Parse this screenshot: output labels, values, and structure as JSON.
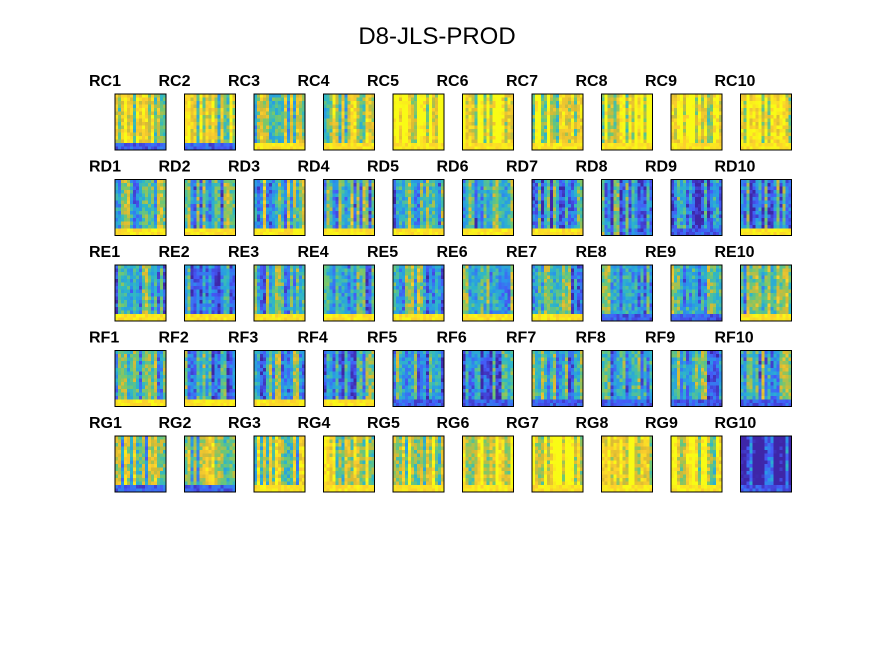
{
  "chart_data": {
    "type": "heatmap",
    "title": "D8-JLS-PROD",
    "colormap": "parula",
    "colors": {
      "low": "#3e26a8",
      "mid": "#2ea8df",
      "high": "#f9fb15",
      "axes_border": "#000000",
      "background": "#ffffff"
    },
    "rows": [
      {
        "label": "RC",
        "panels": [
          {
            "label": "RC1",
            "level": 0.7,
            "bottom": "dark"
          },
          {
            "label": "RC2",
            "level": 0.72,
            "bottom": "dark"
          },
          {
            "label": "RC3",
            "level": 0.55,
            "bottom": "bright"
          },
          {
            "label": "RC4",
            "level": 0.68,
            "bottom": "bright"
          },
          {
            "label": "RC5",
            "level": 0.85,
            "bottom": "bright"
          },
          {
            "label": "RC6",
            "level": 0.88,
            "bottom": "bright"
          },
          {
            "label": "RC7",
            "level": 0.8,
            "bottom": "bright"
          },
          {
            "label": "RC8",
            "level": 0.85,
            "bottom": "bright"
          },
          {
            "label": "RC9",
            "level": 0.86,
            "bottom": "bright"
          },
          {
            "label": "RC10",
            "level": 0.85,
            "bottom": "bright"
          }
        ]
      },
      {
        "label": "RD",
        "panels": [
          {
            "label": "RD1",
            "level": 0.45,
            "bottom": "bright"
          },
          {
            "label": "RD2",
            "level": 0.4,
            "bottom": "bright"
          },
          {
            "label": "RD3",
            "level": 0.48,
            "bottom": "bright"
          },
          {
            "label": "RD4",
            "level": 0.45,
            "bottom": "bright"
          },
          {
            "label": "RD5",
            "level": 0.4,
            "bottom": "bright"
          },
          {
            "label": "RD6",
            "level": 0.36,
            "bottom": "bright"
          },
          {
            "label": "RD7",
            "level": 0.34,
            "bottom": "bright"
          },
          {
            "label": "RD8",
            "level": 0.3,
            "bottom": "mid"
          },
          {
            "label": "RD9",
            "level": 0.22,
            "bottom": "dark"
          },
          {
            "label": "RD10",
            "level": 0.32,
            "bottom": "bright"
          }
        ]
      },
      {
        "label": "RE",
        "panels": [
          {
            "label": "RE1",
            "level": 0.38,
            "bottom": "bright"
          },
          {
            "label": "RE2",
            "level": 0.34,
            "bottom": "bright"
          },
          {
            "label": "RE3",
            "level": 0.36,
            "bottom": "bright"
          },
          {
            "label": "RE4",
            "level": 0.36,
            "bottom": "bright"
          },
          {
            "label": "RE5",
            "level": 0.42,
            "bottom": "bright"
          },
          {
            "label": "RE6",
            "level": 0.38,
            "bottom": "bright"
          },
          {
            "label": "RE7",
            "level": 0.4,
            "bottom": "bright"
          },
          {
            "label": "RE8",
            "level": 0.44,
            "bottom": "dark"
          },
          {
            "label": "RE9",
            "level": 0.46,
            "bottom": "dark"
          },
          {
            "label": "RE10",
            "level": 0.48,
            "bottom": "bright"
          }
        ]
      },
      {
        "label": "RF",
        "panels": [
          {
            "label": "RF1",
            "level": 0.42,
            "bottom": "bright"
          },
          {
            "label": "RF2",
            "level": 0.38,
            "bottom": "bright"
          },
          {
            "label": "RF3",
            "level": 0.38,
            "bottom": "bright"
          },
          {
            "label": "RF4",
            "level": 0.38,
            "bottom": "bright"
          },
          {
            "label": "RF5",
            "level": 0.36,
            "bottom": "dark"
          },
          {
            "label": "RF6",
            "level": 0.36,
            "bottom": "dark"
          },
          {
            "label": "RF7",
            "level": 0.36,
            "bottom": "dark"
          },
          {
            "label": "RF8",
            "level": 0.38,
            "bottom": "dark"
          },
          {
            "label": "RF9",
            "level": 0.38,
            "bottom": "dark"
          },
          {
            "label": "RF10",
            "level": 0.42,
            "bottom": "dark"
          }
        ]
      },
      {
        "label": "RG",
        "panels": [
          {
            "label": "RG1",
            "level": 0.55,
            "bottom": "dark"
          },
          {
            "label": "RG2",
            "level": 0.62,
            "bottom": "dark"
          },
          {
            "label": "RG3",
            "level": 0.62,
            "bottom": "bright"
          },
          {
            "label": "RG4",
            "level": 0.72,
            "bottom": "bright"
          },
          {
            "label": "RG5",
            "level": 0.7,
            "bottom": "bright"
          },
          {
            "label": "RG6",
            "level": 0.82,
            "bottom": "bright"
          },
          {
            "label": "RG7",
            "level": 0.88,
            "bottom": "bright"
          },
          {
            "label": "RG8",
            "level": 0.86,
            "bottom": "bright"
          },
          {
            "label": "RG9",
            "level": 0.8,
            "bottom": "bright"
          },
          {
            "label": "RG10",
            "level": 0.05,
            "bottom": "dark"
          }
        ]
      }
    ]
  }
}
